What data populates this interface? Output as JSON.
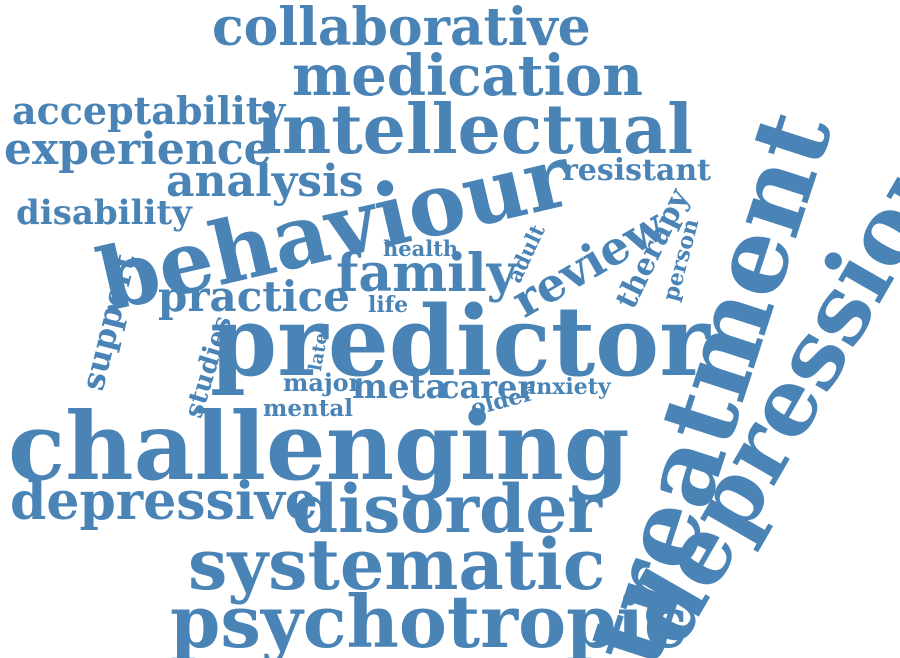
{
  "word_color": "#4a84b6",
  "words": [
    {
      "id": "collaborative",
      "text": "collaborative"
    },
    {
      "id": "medication",
      "text": "medication"
    },
    {
      "id": "acceptability",
      "text": "acceptability"
    },
    {
      "id": "intellectual",
      "text": "intellectual"
    },
    {
      "id": "experience",
      "text": "experience"
    },
    {
      "id": "analysis",
      "text": "analysis"
    },
    {
      "id": "resistant",
      "text": "resistant"
    },
    {
      "id": "disability",
      "text": "disability"
    },
    {
      "id": "behaviour",
      "text": "behaviour"
    },
    {
      "id": "treatment",
      "text": "treatment"
    },
    {
      "id": "depression",
      "text": "depression"
    },
    {
      "id": "health",
      "text": "health"
    },
    {
      "id": "adult",
      "text": "adult"
    },
    {
      "id": "family",
      "text": "family"
    },
    {
      "id": "review",
      "text": "review"
    },
    {
      "id": "therapy",
      "text": "therapy"
    },
    {
      "id": "person",
      "text": "person"
    },
    {
      "id": "support",
      "text": "support"
    },
    {
      "id": "practice",
      "text": "practice"
    },
    {
      "id": "life",
      "text": "life"
    },
    {
      "id": "predictor",
      "text": "predictor"
    },
    {
      "id": "studies",
      "text": "studies"
    },
    {
      "id": "late",
      "text": "late"
    },
    {
      "id": "major",
      "text": "major"
    },
    {
      "id": "meta",
      "text": "meta"
    },
    {
      "id": "carer",
      "text": "carer"
    },
    {
      "id": "anxiety",
      "text": "anxiety"
    },
    {
      "id": "mental",
      "text": "mental"
    },
    {
      "id": "older",
      "text": "older"
    },
    {
      "id": "challenging",
      "text": "challenging"
    },
    {
      "id": "depressive",
      "text": "depressive"
    },
    {
      "id": "disorder",
      "text": "disorder"
    },
    {
      "id": "systematic",
      "text": "systematic"
    },
    {
      "id": "psychotropic",
      "text": "psychotropic"
    }
  ]
}
